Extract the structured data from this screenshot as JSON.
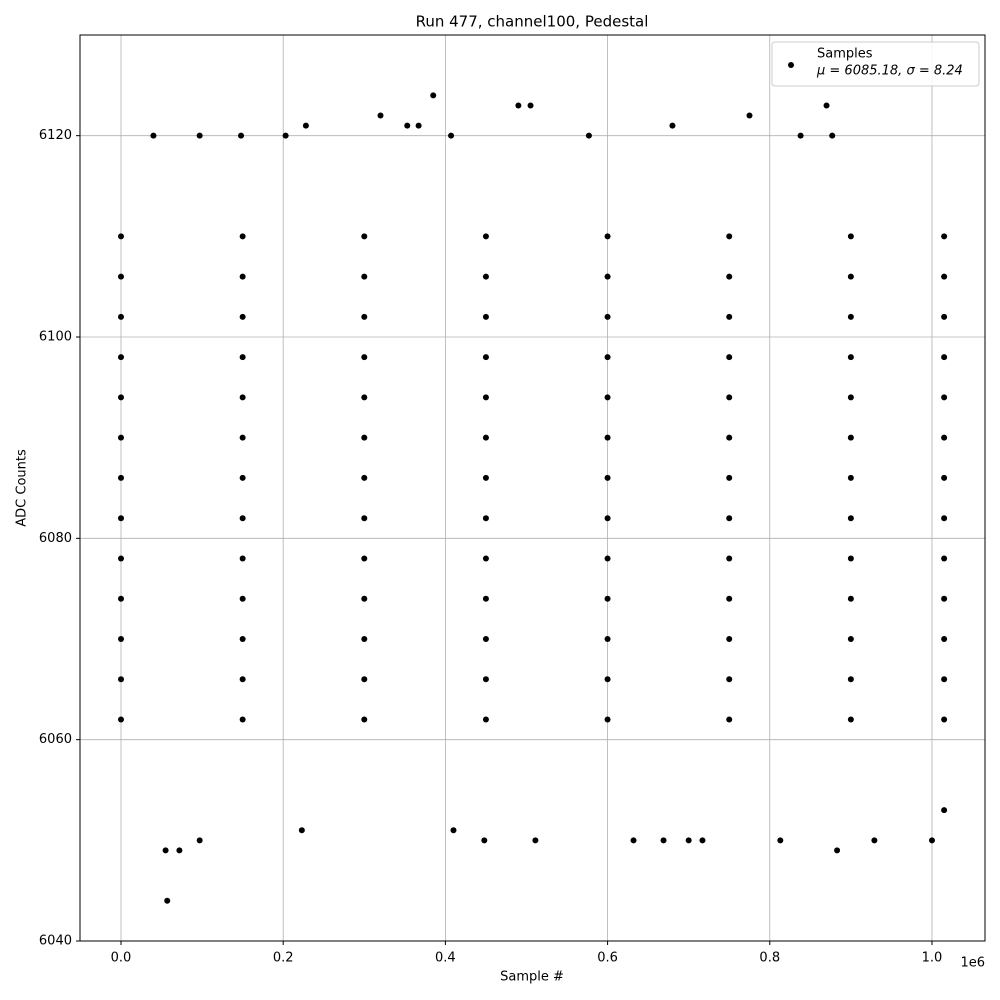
{
  "chart_data": {
    "type": "scatter",
    "title": "Run 477, channel100, Pedestal",
    "xlabel": "Sample #",
    "ylabel": "ADC Counts",
    "x_offset_label": "1e6",
    "xlim": [
      -50556,
      1065400
    ],
    "ylim": [
      6040,
      6130
    ],
    "xticks": [
      {
        "value": 0,
        "label": "0.0"
      },
      {
        "value": 200000,
        "label": "0.2"
      },
      {
        "value": 400000,
        "label": "0.4"
      },
      {
        "value": 600000,
        "label": "0.6"
      },
      {
        "value": 800000,
        "label": "0.8"
      },
      {
        "value": 1000000,
        "label": "1.0"
      }
    ],
    "yticks": [
      6040,
      6060,
      6080,
      6100,
      6120
    ],
    "grid": true,
    "legend": "upper right",
    "series": [
      {
        "name": "Samples",
        "label_note": "μ = 6085.18, σ = 8.24",
        "color": "#000000",
        "x": [
          0,
          150000,
          300000,
          450000,
          600000,
          750000,
          900000,
          1015000,
          0,
          150000,
          300000,
          450000,
          600000,
          750000,
          900000,
          1015000,
          0,
          150000,
          300000,
          450000,
          600000,
          750000,
          900000,
          1015000,
          0,
          150000,
          300000,
          450000,
          600000,
          750000,
          900000,
          1015000,
          0,
          150000,
          300000,
          450000,
          600000,
          750000,
          900000,
          1015000,
          0,
          150000,
          300000,
          450000,
          600000,
          750000,
          900000,
          1015000,
          0,
          150000,
          300000,
          450000,
          600000,
          750000,
          900000,
          1015000,
          0,
          150000,
          300000,
          450000,
          600000,
          750000,
          900000,
          1015000,
          0,
          150000,
          300000,
          450000,
          600000,
          750000,
          900000,
          1015000,
          0,
          150000,
          300000,
          450000,
          600000,
          750000,
          900000,
          1015000,
          0,
          150000,
          300000,
          450000,
          600000,
          750000,
          900000,
          1015000,
          0,
          150000,
          300000,
          450000,
          600000,
          750000,
          900000,
          1015000,
          0,
          150000,
          300000,
          450000,
          600000,
          750000,
          900000,
          1015000,
          57000,
          55000,
          72000,
          97000,
          448000,
          511000,
          632000,
          669000,
          700000,
          717000,
          813000,
          883000,
          929000,
          1000000,
          385000,
          490000,
          505000,
          870000,
          320000,
          775000,
          228000,
          353000,
          367000,
          680000,
          40000,
          97000,
          148000,
          203000,
          407000,
          577000,
          838000,
          877000,
          1015000,
          223000,
          410000
        ],
        "y": [
          6062,
          6062,
          6062,
          6062,
          6062,
          6062,
          6062,
          6062,
          6066,
          6066,
          6066,
          6066,
          6066,
          6066,
          6066,
          6066,
          6070,
          6070,
          6070,
          6070,
          6070,
          6070,
          6070,
          6070,
          6074,
          6074,
          6074,
          6074,
          6074,
          6074,
          6074,
          6074,
          6078,
          6078,
          6078,
          6078,
          6078,
          6078,
          6078,
          6078,
          6082,
          6082,
          6082,
          6082,
          6082,
          6082,
          6082,
          6082,
          6086,
          6086,
          6086,
          6086,
          6086,
          6086,
          6086,
          6086,
          6090,
          6090,
          6090,
          6090,
          6090,
          6090,
          6090,
          6090,
          6094,
          6094,
          6094,
          6094,
          6094,
          6094,
          6094,
          6094,
          6098,
          6098,
          6098,
          6098,
          6098,
          6098,
          6098,
          6098,
          6102,
          6102,
          6102,
          6102,
          6102,
          6102,
          6102,
          6102,
          6106,
          6106,
          6106,
          6106,
          6106,
          6106,
          6106,
          6106,
          6110,
          6110,
          6110,
          6110,
          6110,
          6110,
          6110,
          6110,
          6044,
          6049,
          6049,
          6050,
          6050,
          6050,
          6050,
          6050,
          6050,
          6050,
          6050,
          6049,
          6050,
          6050,
          6124,
          6123,
          6123,
          6123,
          6122,
          6122,
          6121,
          6121,
          6121,
          6121,
          6120,
          6120,
          6120,
          6120,
          6120,
          6120,
          6120,
          6120,
          6053,
          6051,
          6051
        ]
      }
    ]
  }
}
